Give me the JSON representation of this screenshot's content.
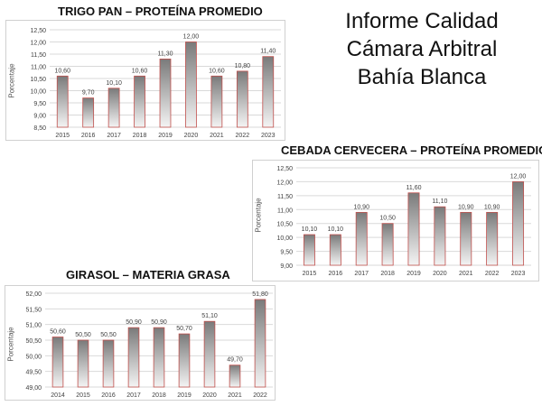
{
  "page": {
    "title_lines": [
      "Informe Calidad",
      "Cámara Arbitral",
      "Bahía Blanca"
    ]
  },
  "colors": {
    "bar_top": "#7a7a7a",
    "bar_bottom": "#f4f4f4",
    "bar_border": "#c0504d",
    "grid": "#d9d9d9",
    "text": "#404040"
  },
  "chart_data": [
    {
      "id": "trigo",
      "type": "bar",
      "title": "TRIGO PAN – PROTEÍNA PROMEDIO",
      "ylabel": "Porcentaje",
      "categories": [
        "2015",
        "2016",
        "2017",
        "2018",
        "2019",
        "2020",
        "2021",
        "2022",
        "2023"
      ],
      "values": [
        10.6,
        9.7,
        10.1,
        10.6,
        11.3,
        12.0,
        10.6,
        10.8,
        11.4
      ],
      "data_labels": [
        "10,60",
        "9,70",
        "10,10",
        "10,60",
        "11,30",
        "12,00",
        "10,60",
        "10,80",
        "11,40"
      ],
      "ylim": [
        8.5,
        12.5
      ],
      "yticks": [
        "8,50",
        "9,00",
        "9,50",
        "10,00",
        "10,50",
        "11,00",
        "11,50",
        "12,00",
        "12,50"
      ],
      "grid": true,
      "legend": "none"
    },
    {
      "id": "cebada",
      "type": "bar",
      "title": "CEBADA CERVECERA – PROTEÍNA PROMEDIO",
      "ylabel": "Porcentaje",
      "categories": [
        "2015",
        "2016",
        "2017",
        "2018",
        "2019",
        "2020",
        "2021",
        "2022",
        "2023"
      ],
      "values": [
        10.1,
        10.1,
        10.9,
        10.5,
        11.6,
        11.1,
        10.9,
        10.9,
        12.0
      ],
      "data_labels": [
        "10,10",
        "10,10",
        "10,90",
        "10,50",
        "11,60",
        "11,10",
        "10,90",
        "10,90",
        "12,00"
      ],
      "ylim": [
        9.0,
        12.5
      ],
      "yticks": [
        "9,00",
        "9,50",
        "10,00",
        "10,50",
        "11,00",
        "11,50",
        "12,00",
        "12,50"
      ],
      "grid": true,
      "legend": "none"
    },
    {
      "id": "girasol",
      "type": "bar",
      "title": "GIRASOL – MATERIA GRASA",
      "ylabel": "Porcentaje",
      "categories": [
        "2014",
        "2015",
        "2016",
        "2017",
        "2018",
        "2019",
        "2020",
        "2021",
        "2022"
      ],
      "values": [
        50.6,
        50.5,
        50.5,
        50.9,
        50.9,
        50.7,
        51.1,
        49.7,
        51.8
      ],
      "data_labels": [
        "50,60",
        "50,50",
        "50,50",
        "50,90",
        "50,90",
        "50,70",
        "51,10",
        "49,70",
        "51,80"
      ],
      "ylim": [
        49.0,
        52.0
      ],
      "yticks": [
        "49,00",
        "49,50",
        "50,00",
        "50,50",
        "51,00",
        "51,50",
        "52,00"
      ],
      "grid": true,
      "legend": "none"
    }
  ]
}
